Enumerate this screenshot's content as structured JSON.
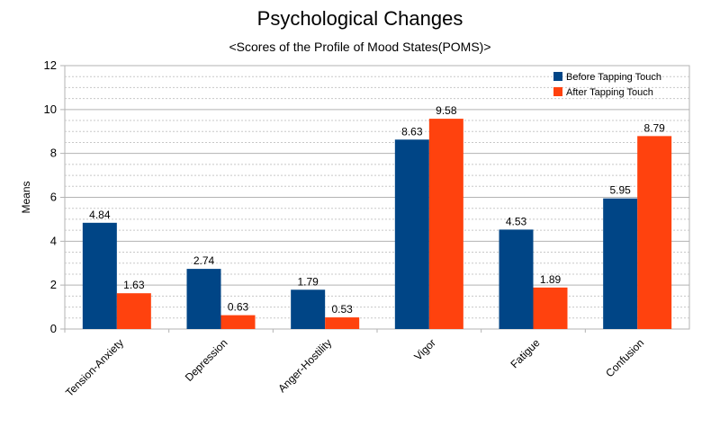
{
  "chart_data": {
    "type": "bar",
    "title": "Psychological Changes",
    "subtitle": "<Scores of the Profile of Mood States(POMS)>",
    "xlabel": "",
    "ylabel": "Means",
    "ylim": [
      0,
      12
    ],
    "yticks": [
      0,
      2,
      4,
      6,
      8,
      10,
      12
    ],
    "grid": true,
    "legend_position": "top-right",
    "categories": [
      "Tension-Anxiety",
      "Depression",
      "Anger-Hostility",
      "Vigor",
      "Fatigue",
      "Confusion"
    ],
    "series": [
      {
        "name": "Before Tapping Touch",
        "color": "#004586",
        "values": [
          4.84,
          2.74,
          1.79,
          8.63,
          4.53,
          5.95
        ],
        "labels": [
          "4.84",
          "2.74",
          "1.79",
          "8.63",
          "4.53",
          "5.95"
        ]
      },
      {
        "name": "After Tapping Touch",
        "color": "#ff420e",
        "values": [
          1.63,
          0.63,
          0.53,
          9.58,
          1.89,
          8.79
        ],
        "labels": [
          "1.63",
          "0.63",
          "0.53",
          "9.58",
          "1.89",
          "8.79"
        ]
      }
    ]
  }
}
